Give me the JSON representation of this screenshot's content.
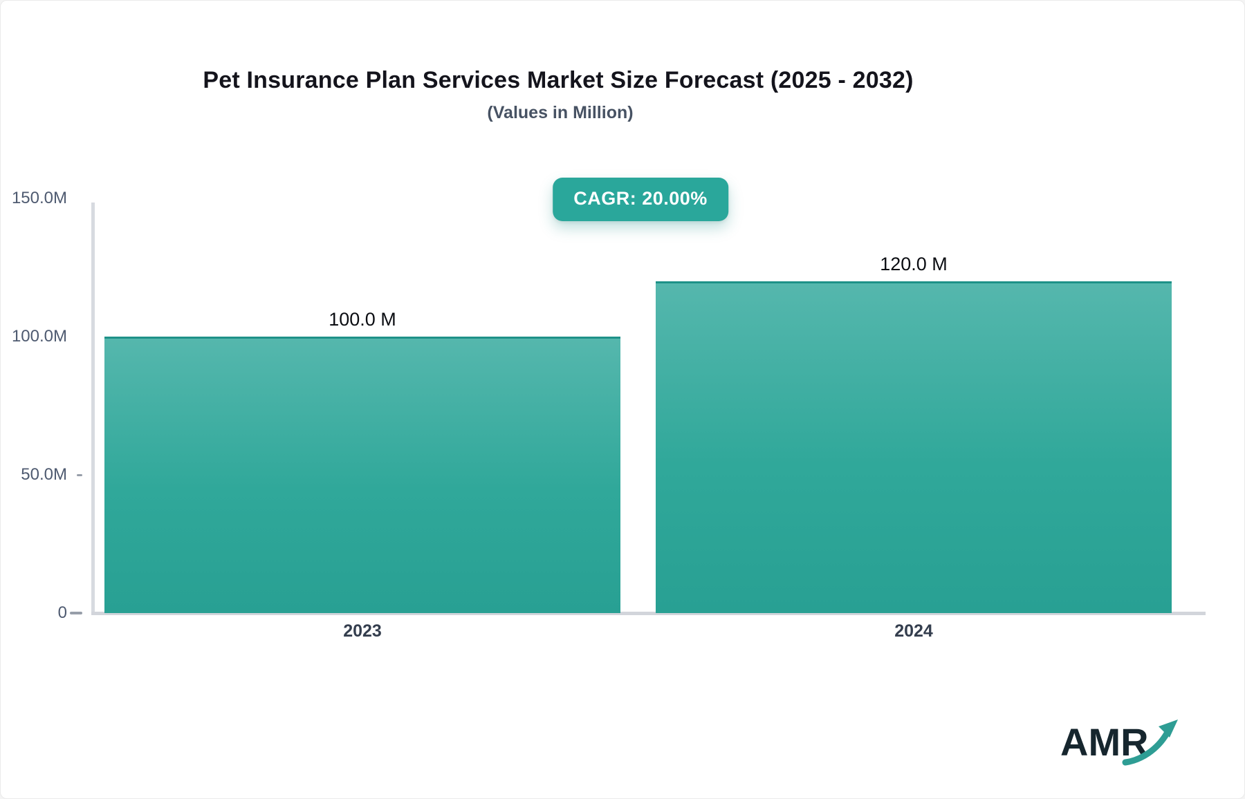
{
  "header": {
    "title": "Pet Insurance Plan Services Market Size Forecast (2025 - 2032)",
    "subtitle": "(Values in Million)",
    "cagr_label": "CAGR: 20.00%"
  },
  "logo": {
    "text": "AMR"
  },
  "colors": {
    "accent_teal": "#2aa79b",
    "bar_gradient_top": "#55b7ad",
    "bar_gradient_mid": "#30a89a",
    "bar_gradient_bottom": "#28a093",
    "bar_top_border": "#1e9188",
    "axis_line": "#d6d9df",
    "title_text": "#14141c",
    "subtitle_text": "#475263",
    "y_tick_text": "#4e5a70",
    "x_tick_text": "#343e4e",
    "logo_text": "#16262e",
    "logo_arrow": "#2e9d94"
  },
  "chart_data": {
    "type": "bar",
    "title": "Pet Insurance Plan Services Market Size Forecast (2025 - 2032)",
    "subtitle": "(Values in Million)",
    "cagr_percent": "20.00%",
    "unit": "Million",
    "categories": [
      "2023",
      "2024"
    ],
    "values": [
      100.0,
      120.0
    ],
    "value_labels": [
      "100.0 M",
      "120.0 M"
    ],
    "ylim": [
      0,
      150
    ],
    "yticks": [
      {
        "label": "150.0M",
        "value": 150,
        "tick_mark": "none"
      },
      {
        "label": "100.0M",
        "value": 100,
        "tick_mark": "none"
      },
      {
        "label": "50.0M",
        "value": 50,
        "tick_mark": "small"
      },
      {
        "label": "0",
        "value": 0,
        "tick_mark": "large"
      }
    ],
    "grid": false,
    "legend": false
  }
}
